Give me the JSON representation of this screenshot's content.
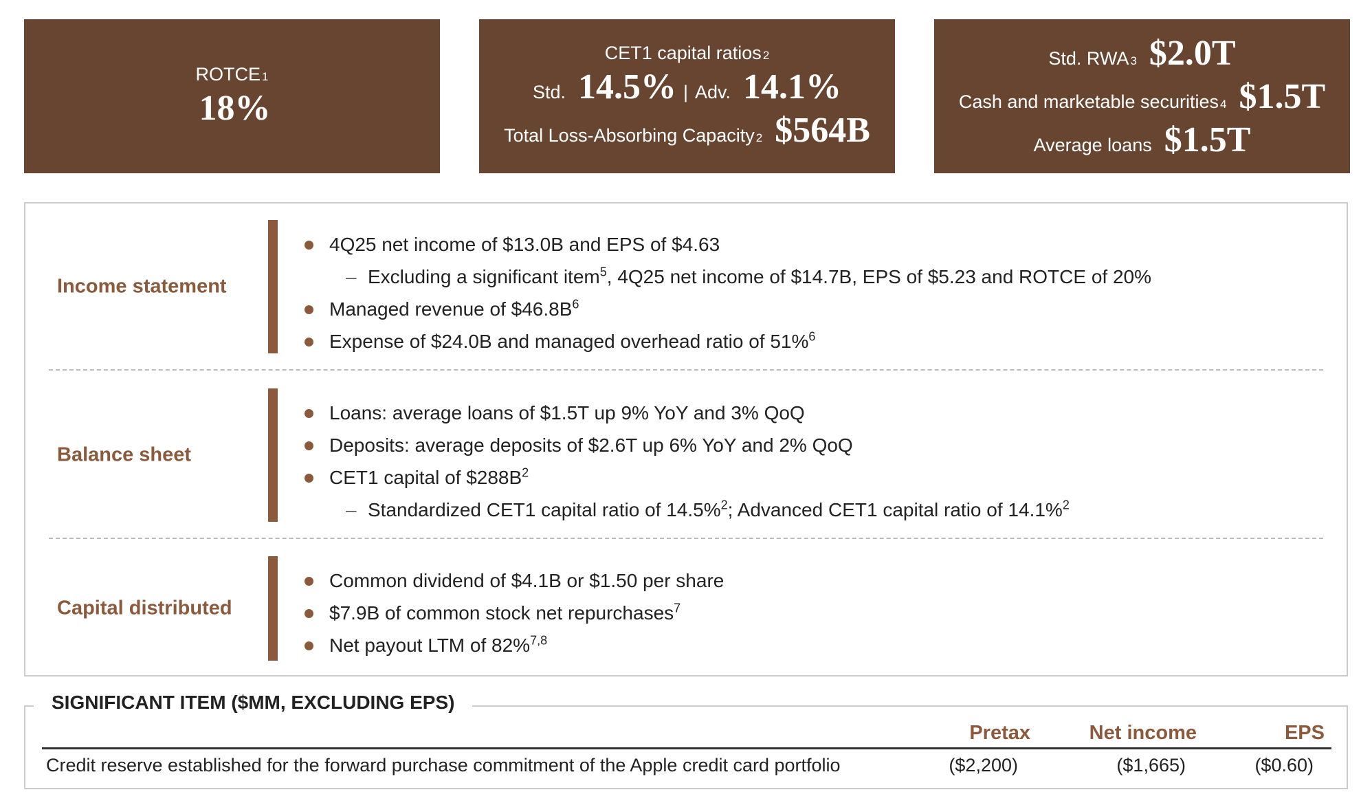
{
  "metrics": [
    {
      "lines": [
        [
          {
            "t": "ROTCE"
          },
          {
            "sup": "1"
          }
        ],
        [
          {
            "big": "18%"
          }
        ]
      ]
    },
    {
      "lines": [
        [
          {
            "t": "CET1 capital ratios"
          },
          {
            "sup": "2"
          }
        ],
        [
          {
            "t": "Std."
          },
          {
            "big": "14.5%"
          },
          {
            "t": "|"
          },
          {
            "t": "Adv."
          },
          {
            "big": "14.1%"
          }
        ],
        [
          {
            "t": "Total Loss-Absorbing Capacity"
          },
          {
            "sup": "2"
          },
          {
            "big": "$564B"
          }
        ]
      ]
    },
    {
      "lines": [
        [
          {
            "t": "Std. RWA"
          },
          {
            "sup": "3"
          },
          {
            "big": "$2.0T"
          }
        ],
        [
          {
            "t": "Cash and marketable securities"
          },
          {
            "sup": "4"
          },
          {
            "big": "$1.5T"
          }
        ],
        [
          {
            "t": "Average loans"
          },
          {
            "big": "$1.5T"
          }
        ]
      ]
    }
  ],
  "sections": [
    {
      "label": "Income statement",
      "items": [
        {
          "level": 1,
          "parts": [
            {
              "t": "4Q25 net income of $13.0B and EPS of $4.63"
            }
          ]
        },
        {
          "level": 2,
          "parts": [
            {
              "t": "Excluding a significant item"
            },
            {
              "sup": "5"
            },
            {
              "t": ", 4Q25 net income of $14.7B, EPS of $5.23 and ROTCE of 20%"
            }
          ]
        },
        {
          "level": 1,
          "parts": [
            {
              "t": "Managed revenue of $46.8B"
            },
            {
              "sup": "6"
            }
          ]
        },
        {
          "level": 1,
          "parts": [
            {
              "t": "Expense of $24.0B and managed overhead ratio of 51%"
            },
            {
              "sup": "6"
            }
          ]
        }
      ]
    },
    {
      "label": "Balance sheet",
      "items": [
        {
          "level": 1,
          "parts": [
            {
              "t": "Loans: average loans of $1.5T up 9% YoY and 3% QoQ"
            }
          ]
        },
        {
          "level": 1,
          "parts": [
            {
              "t": "Deposits: average deposits of $2.6T up 6% YoY and 2% QoQ"
            }
          ]
        },
        {
          "level": 1,
          "parts": [
            {
              "t": "CET1 capital of $288B"
            },
            {
              "sup": "2"
            }
          ]
        },
        {
          "level": 2,
          "parts": [
            {
              "t": "Standardized CET1 capital ratio of 14.5%"
            },
            {
              "sup": "2"
            },
            {
              "t": "; Advanced CET1 capital ratio of 14.1%"
            },
            {
              "sup": "2"
            }
          ]
        }
      ]
    },
    {
      "label": "Capital distributed",
      "items": [
        {
          "level": 1,
          "parts": [
            {
              "t": "Common dividend of $4.1B or $1.50 per share"
            }
          ]
        },
        {
          "level": 1,
          "parts": [
            {
              "t": "$7.9B of common stock net repurchases"
            },
            {
              "sup": "7"
            }
          ]
        },
        {
          "level": 1,
          "parts": [
            {
              "t": "Net payout LTM of 82%"
            },
            {
              "sup": "7,8"
            }
          ]
        }
      ]
    }
  ],
  "significant_item": {
    "title": "SIGNIFICANT ITEM ($MM, EXCLUDING EPS)",
    "columns": [
      "Pretax",
      "Net income",
      "EPS"
    ],
    "rows": [
      {
        "label": "Credit reserve established for the forward purchase commitment of the Apple credit card portfolio",
        "values": [
          "($2,200)",
          "($1,665)",
          "($0.60)"
        ]
      }
    ]
  }
}
